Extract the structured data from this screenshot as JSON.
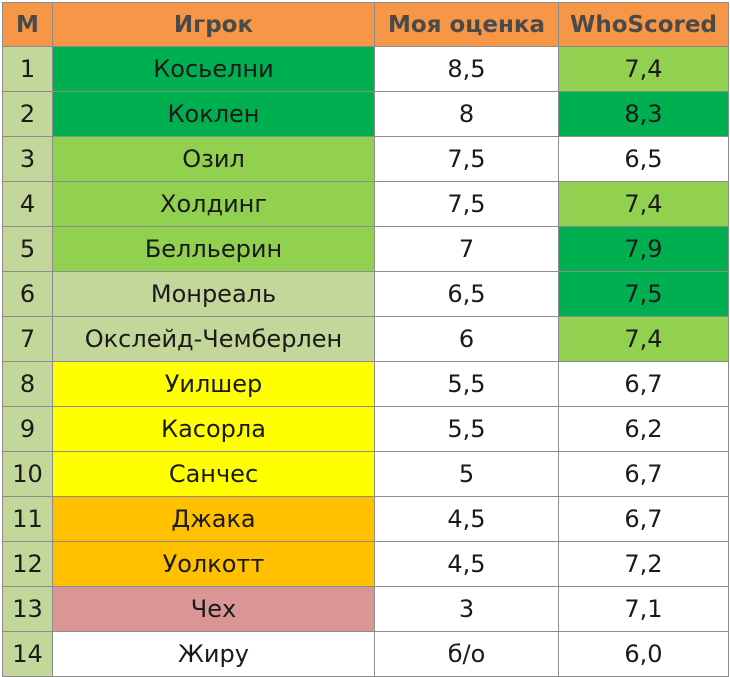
{
  "colors": {
    "header": "#f79646",
    "index_cell": "#c4d79b",
    "dark_green": "#00b050",
    "green": "#92d050",
    "light_green": "#c4d79b",
    "yellow": "#ffff00",
    "orange": "#ffc000",
    "pink": "#da9694",
    "white": "#ffffff"
  },
  "headers": {
    "num": "М",
    "player": "Игрок",
    "my_rating": "Моя оценка",
    "whoscored": "WhoScored"
  },
  "rows": [
    {
      "num": "1",
      "player": "Косьелни",
      "player_color": "#00b050",
      "my_rating": "8,5",
      "whoscored": "7,4",
      "whoscored_color": "#92d050"
    },
    {
      "num": "2",
      "player": "Коклен",
      "player_color": "#00b050",
      "my_rating": "8",
      "whoscored": "8,3",
      "whoscored_color": "#00b050"
    },
    {
      "num": "3",
      "player": "Озил",
      "player_color": "#92d050",
      "my_rating": "7,5",
      "whoscored": "6,5",
      "whoscored_color": "#ffffff"
    },
    {
      "num": "4",
      "player": "Холдинг",
      "player_color": "#92d050",
      "my_rating": "7,5",
      "whoscored": "7,4",
      "whoscored_color": "#92d050"
    },
    {
      "num": "5",
      "player": "Белльерин",
      "player_color": "#92d050",
      "my_rating": "7",
      "whoscored": "7,9",
      "whoscored_color": "#00b050"
    },
    {
      "num": "6",
      "player": "Монреаль",
      "player_color": "#c4d79b",
      "my_rating": "6,5",
      "whoscored": "7,5",
      "whoscored_color": "#00b050"
    },
    {
      "num": "7",
      "player": "Окслейд-Чемберлен",
      "player_color": "#c4d79b",
      "my_rating": "6",
      "whoscored": "7,4",
      "whoscored_color": "#92d050"
    },
    {
      "num": "8",
      "player": "Уилшер",
      "player_color": "#ffff00",
      "my_rating": "5,5",
      "whoscored": "6,7",
      "whoscored_color": "#ffffff"
    },
    {
      "num": "9",
      "player": "Касорла",
      "player_color": "#ffff00",
      "my_rating": "5,5",
      "whoscored": "6,2",
      "whoscored_color": "#ffffff"
    },
    {
      "num": "10",
      "player": "Санчес",
      "player_color": "#ffff00",
      "my_rating": "5",
      "whoscored": "6,7",
      "whoscored_color": "#ffffff"
    },
    {
      "num": "11",
      "player": "Джака",
      "player_color": "#ffc000",
      "my_rating": "4,5",
      "whoscored": "6,7",
      "whoscored_color": "#ffffff"
    },
    {
      "num": "12",
      "player": "Уолкотт",
      "player_color": "#ffc000",
      "my_rating": "4,5",
      "whoscored": "7,2",
      "whoscored_color": "#ffffff"
    },
    {
      "num": "13",
      "player": "Чех",
      "player_color": "#da9694",
      "my_rating": "3",
      "whoscored": "7,1",
      "whoscored_color": "#ffffff"
    },
    {
      "num": "14",
      "player": "Жиру",
      "player_color": "#ffffff",
      "my_rating": "б/о",
      "whoscored": "6,0",
      "whoscored_color": "#ffffff"
    }
  ]
}
